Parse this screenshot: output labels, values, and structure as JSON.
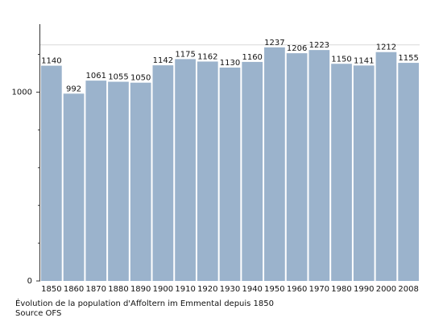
{
  "chart_data": {
    "type": "bar",
    "categories": [
      "1850",
      "1860",
      "1870",
      "1880",
      "1890",
      "1900",
      "1910",
      "1920",
      "1930",
      "1940",
      "1950",
      "1960",
      "1970",
      "1980",
      "1990",
      "2000",
      "2008"
    ],
    "values": [
      1140,
      992,
      1061,
      1055,
      1050,
      1142,
      1175,
      1162,
      1130,
      1160,
      1237,
      1206,
      1223,
      1150,
      1141,
      1212,
      1155
    ],
    "data_labels": [
      "1140",
      "992",
      "1061",
      "1055",
      "1050",
      "1142",
      "1175",
      "1162",
      "1130",
      "1160",
      "1237",
      "1206",
      "1223",
      "1150",
      "1141",
      "1212",
      "1155"
    ],
    "ylim": [
      0,
      1360
    ],
    "yticks_labeled": [
      "0",
      "1000"
    ],
    "ytick_values": [
      0,
      1000
    ],
    "yticks_minor": [
      200,
      400,
      600,
      800,
      1200
    ],
    "grid_lines": [
      1250
    ],
    "bar_color": "#9bb3cc",
    "legend": "none",
    "grid": false
  },
  "caption": {
    "title": "Évolution de la population d'Affoltern im Emmental depuis 1850",
    "source": "Source OFS"
  }
}
